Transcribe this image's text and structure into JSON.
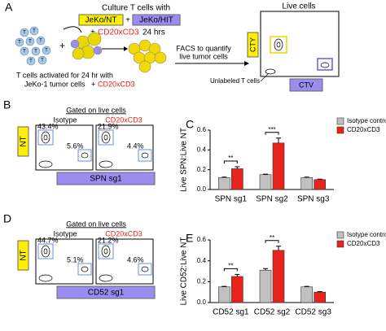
{
  "panel_a": {
    "label": "A",
    "culture_title": "Culture T cells with",
    "plus": "+",
    "jeko_nt": "JeKo/NT",
    "jeko_hit": "JeKo/HIT",
    "cd20xcd3": "CD20xCD3",
    "hours": "24 hrs",
    "facs_line1": "FACS to quantify",
    "facs_line2": "live tumor cells",
    "activated_line1": "T cells activated for 24 hr with",
    "activated_line2": "JeKo-1 tumor cells",
    "live_cells": "Live cells",
    "cty": "CTY",
    "ctv": "CTV",
    "unlabeled": "Unlabeled T cells",
    "t": "T"
  },
  "panel_b": {
    "label": "B",
    "gate": "Gated on live cells",
    "isotype": "Isotype",
    "treatment": "CD20xCD3",
    "nt": "NT",
    "x_box": "SPN sg1",
    "iso_top": "43.4%",
    "iso_bottom": "5.6%",
    "trt_top": "21.9%",
    "trt_bottom": "4.4%"
  },
  "panel_d": {
    "label": "D",
    "gate": "Gated on live cells",
    "isotype": "Isotype",
    "treatment": "CD20xCD3",
    "nt": "NT",
    "x_box": "CD52 sg1",
    "iso_top": "44.7%",
    "iso_bottom": "5.1%",
    "trt_top": "21.2%",
    "trt_bottom": "4.6%"
  },
  "chart_data": [
    {
      "type": "bar",
      "panel_label": "C",
      "y_label": "Live SPN:Live NT",
      "categories": [
        "SPN sg1",
        "SPN sg2",
        "SPN sg3"
      ],
      "series": [
        {
          "name": "Isotype control",
          "color": "#c0c0c0",
          "values": [
            0.12,
            0.15,
            0.12
          ],
          "errors": [
            0.005,
            0.005,
            0.005
          ]
        },
        {
          "name": "CD20xCD3",
          "color": "#e8231c",
          "values": [
            0.21,
            0.47,
            0.1
          ],
          "errors": [
            0.02,
            0.05,
            0.005
          ]
        }
      ],
      "ylim": [
        0,
        0.6
      ],
      "yticks": [
        {
          "value": 0,
          "label": "0.0"
        },
        0.2,
        0.4,
        0.6
      ],
      "annotations": [
        "**",
        "***"
      ]
    },
    {
      "type": "bar",
      "panel_label": "E",
      "y_label": "Live CD52:Live NT",
      "categories": [
        "CD52 sg1",
        "CD52 sg2",
        "CD52 sg3"
      ],
      "series": [
        {
          "name": "Isotype control",
          "color": "#c0c0c0",
          "values": [
            0.15,
            0.31,
            0.15
          ],
          "errors": [
            0.005,
            0.015,
            0.005
          ]
        },
        {
          "name": "CD20xCD3",
          "color": "#e8231c",
          "values": [
            0.25,
            0.5,
            0.1
          ],
          "errors": [
            0.02,
            0.04,
            0.005
          ]
        }
      ],
      "ylim": [
        0,
        0.6
      ],
      "yticks": [
        {
          "value": 0,
          "label": "0.0"
        },
        0.2,
        0.4,
        0.6
      ],
      "annotations": [
        "**",
        "**"
      ]
    }
  ]
}
